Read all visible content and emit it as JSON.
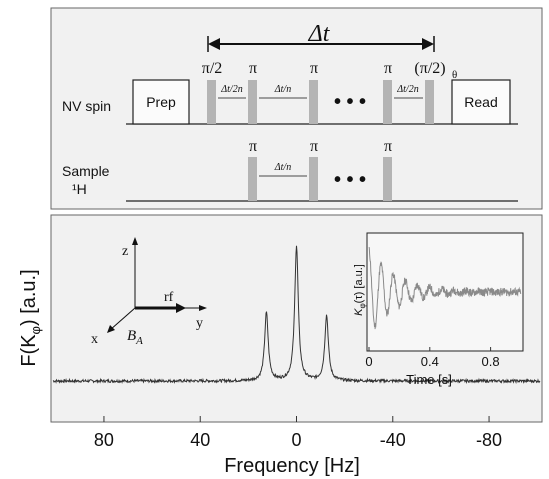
{
  "colors": {
    "panel_bg": "#f1f1f1",
    "pulse_fill": "#b4b4b4",
    "line": "#1a1a1a",
    "spectrum": "#333333",
    "inset_trace": "#8a8a8a"
  },
  "sequence": {
    "delta_t_label": "Δt",
    "nv_row_label": "NV spin",
    "sample_row_label_1": "Sample",
    "sample_row_label_2": "¹H",
    "prep_label": "Prep",
    "read_label": "Read",
    "pulse_pi2_label": "π/2",
    "pulse_pi_label": "π",
    "pulse_final_label": "(π/2)",
    "pulse_final_subscript": "θ",
    "gap_half_label": "Δt/2n",
    "gap_label": "Δt/n",
    "ellipsis": "• • •"
  },
  "axes_diagram": {
    "z_label": "z",
    "x_label": "x",
    "y_label": "y",
    "rf_label": "rf",
    "field_label": "B",
    "field_subscript": "A"
  },
  "chart_data": [
    {
      "type": "line",
      "title": "",
      "xlabel": "Frequency [Hz]",
      "ylabel": "F(K",
      "ylabel_subscript": "φ",
      "ylabel_suffix": ") [a.u.]",
      "xlim": [
        102,
        -102
      ],
      "x_reversed": true,
      "xticks": [
        80,
        40,
        0,
        -40,
        -80
      ],
      "xtick_labels": [
        "80",
        "40",
        "0",
        "-40",
        "-80"
      ],
      "baseline": 0.03,
      "peaks": [
        {
          "x": 12.5,
          "height": 0.52,
          "width": 0.9
        },
        {
          "x": 0,
          "height": 1.0,
          "width": 0.9
        },
        {
          "x": -12.5,
          "height": 0.5,
          "width": 0.9
        }
      ],
      "grid": false
    },
    {
      "type": "line",
      "title": "",
      "xlabel": "Time [s]",
      "ylabel": "K",
      "ylabel_subscript": "φ",
      "ylabel_suffix": "(τ) [a.u.]",
      "xlim": [
        0,
        1.0
      ],
      "xticks": [
        0,
        0.4,
        0.8
      ],
      "xtick_labels": [
        "0",
        "0.4",
        "0.8"
      ],
      "trace": {
        "decay_time_s": 0.18,
        "oscillation_hz": 12.5,
        "amplitude": 0.85,
        "noise": 0.08
      },
      "grid": false
    }
  ]
}
